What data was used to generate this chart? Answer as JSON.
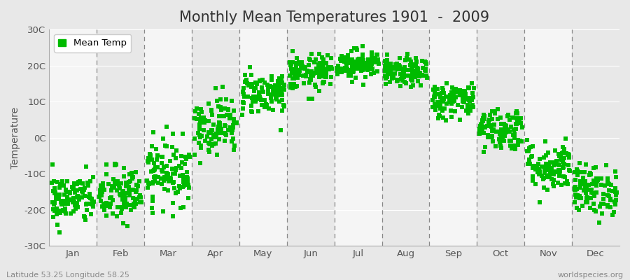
{
  "title": "Monthly Mean Temperatures 1901  -  2009",
  "ylabel": "Temperature",
  "ylim": [
    -30,
    30
  ],
  "yticks": [
    -30,
    -20,
    -10,
    0,
    10,
    20,
    30
  ],
  "ytick_labels": [
    "-30C",
    "-20C",
    "-10C",
    "0C",
    "10C",
    "20C",
    "30C"
  ],
  "months": [
    "Jan",
    "Feb",
    "Mar",
    "Apr",
    "May",
    "Jun",
    "Jul",
    "Aug",
    "Sep",
    "Oct",
    "Nov",
    "Dec"
  ],
  "dot_color": "#00BB00",
  "legend_label": "Mean Temp",
  "bottom_left": "Latitude 53.25 Longitude 58.25",
  "bottom_right": "worldspecies.org",
  "mean_temps": [
    -17.0,
    -16.0,
    -9.5,
    3.5,
    12.5,
    18.0,
    20.5,
    18.0,
    10.5,
    2.5,
    -8.0,
    -14.5
  ],
  "std_temps": [
    3.5,
    4.0,
    4.5,
    4.0,
    3.0,
    2.5,
    2.0,
    2.0,
    2.5,
    3.0,
    3.5,
    3.5
  ],
  "n_years": 109,
  "fig_bg": "#e8e8e8",
  "plot_bg_light": "#f5f5f5",
  "plot_bg_dark": "#e8e8e8",
  "title_fontsize": 15,
  "axis_fontsize": 10,
  "tick_fontsize": 9.5,
  "dot_size": 18,
  "dot_alpha": 1.0,
  "dot_marker": "s"
}
